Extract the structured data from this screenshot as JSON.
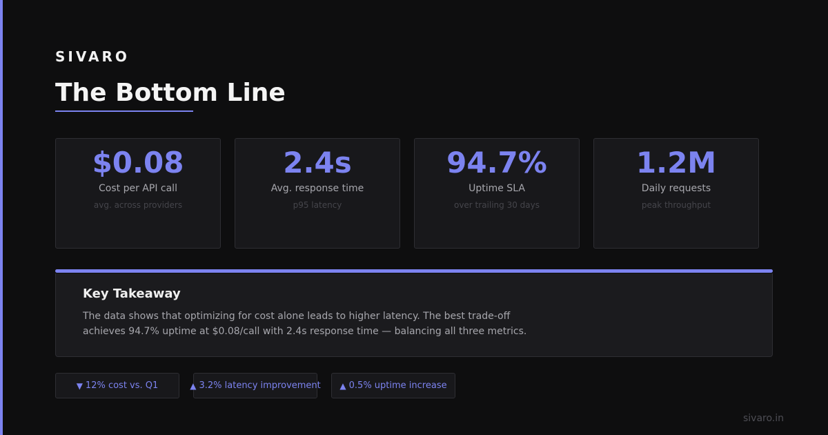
{
  "brand": "SIVARO",
  "title": "The Bottom Line",
  "metrics": [
    {
      "value": "$0.08",
      "label": "Cost per API call",
      "sub": "avg. across providers"
    },
    {
      "value": "2.4s",
      "label": "Avg. response time",
      "sub": "p95 latency"
    },
    {
      "value": "94.7%",
      "label": "Uptime SLA",
      "sub": "over trailing 30 days"
    },
    {
      "value": "1.2M",
      "label": "Daily requests",
      "sub": "peak throughput"
    }
  ],
  "takeaway": {
    "heading": "Key Takeaway",
    "line1": "The data shows that optimizing for cost alone leads to higher latency. The best trade-off",
    "line2": "achieves 94.7% uptime at $0.08/call with 2.4s response time — balancing all three metrics."
  },
  "pills": [
    {
      "arrow": "▼",
      "text": "12% cost vs. Q1"
    },
    {
      "arrow": "▲",
      "text": "3.2% latency improvement"
    },
    {
      "arrow": "▲",
      "text": "0.5% uptime increase"
    }
  ],
  "footer": "sivaro.in",
  "colors": {
    "accent": "#7c83f0",
    "background": "#0e0e0f",
    "card": "#18181b"
  }
}
